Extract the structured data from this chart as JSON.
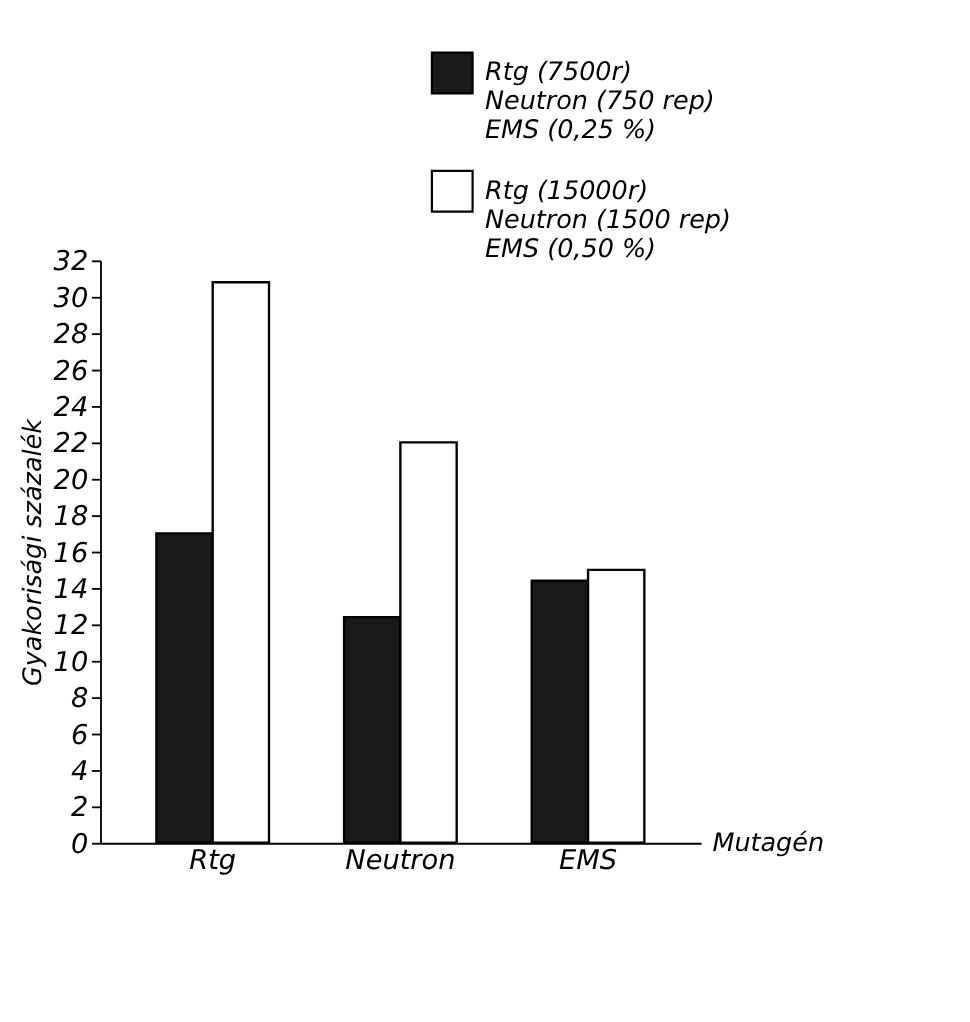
{
  "chart_data": {
    "type": "bar",
    "xlabel": "Mutagén",
    "ylabel": "Gyakorisági százalék",
    "categories": [
      "Rtg",
      "Neutron",
      "EMS"
    ],
    "series": [
      {
        "name": "Rtg (7500r)\nNeutron (750 rep)\nEMS (0,25 %)",
        "color": "#1a1a1a",
        "values": [
          17.0,
          12.4,
          14.4
        ]
      },
      {
        "name": "Rtg (15000r)\nNeutron (1500 rep)\nEMS (0,50 %)",
        "color": "#ffffff",
        "values": [
          30.8,
          22.0,
          15.0
        ]
      }
    ],
    "ylim": [
      0,
      32
    ],
    "yticks": [
      0,
      2,
      4,
      6,
      8,
      10,
      12,
      14,
      16,
      18,
      20,
      22,
      24,
      26,
      28,
      30,
      32
    ],
    "grid": false,
    "legend": "top right"
  }
}
